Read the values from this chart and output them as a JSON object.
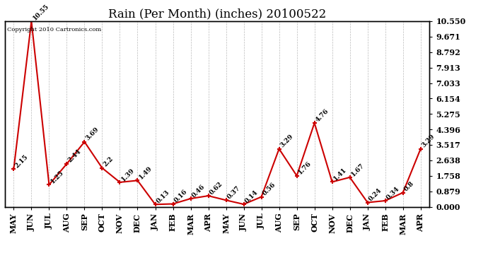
{
  "title": "Rain (Per Month) (inches) 20100522",
  "copyright_text": "Copyright 2010 Cartronics.com",
  "months": [
    "MAY",
    "JUN",
    "JUL",
    "AUG",
    "SEP",
    "OCT",
    "NOV",
    "DEC",
    "JAN",
    "FEB",
    "MAR",
    "APR",
    "MAY",
    "JUN",
    "JUL",
    "AUG",
    "SEP",
    "OCT",
    "NOV",
    "DEC",
    "JAN",
    "FEB",
    "MAR",
    "APR"
  ],
  "values": [
    2.15,
    10.55,
    1.25,
    2.44,
    3.69,
    2.2,
    1.39,
    1.49,
    0.13,
    0.16,
    0.46,
    0.62,
    0.37,
    0.14,
    0.56,
    3.29,
    1.76,
    4.76,
    1.41,
    1.67,
    0.24,
    0.34,
    0.8,
    3.29
  ],
  "line_color": "#cc0000",
  "marker_color": "#cc0000",
  "background_color": "#ffffff",
  "grid_color": "#bbbbbb",
  "ylim": [
    0.0,
    10.55
  ],
  "yticks": [
    0.0,
    0.879,
    1.758,
    2.638,
    3.517,
    4.396,
    5.275,
    6.154,
    7.033,
    7.913,
    8.792,
    9.671,
    10.55
  ],
  "title_fontsize": 12,
  "label_fontsize": 6.5,
  "tick_fontsize": 8
}
